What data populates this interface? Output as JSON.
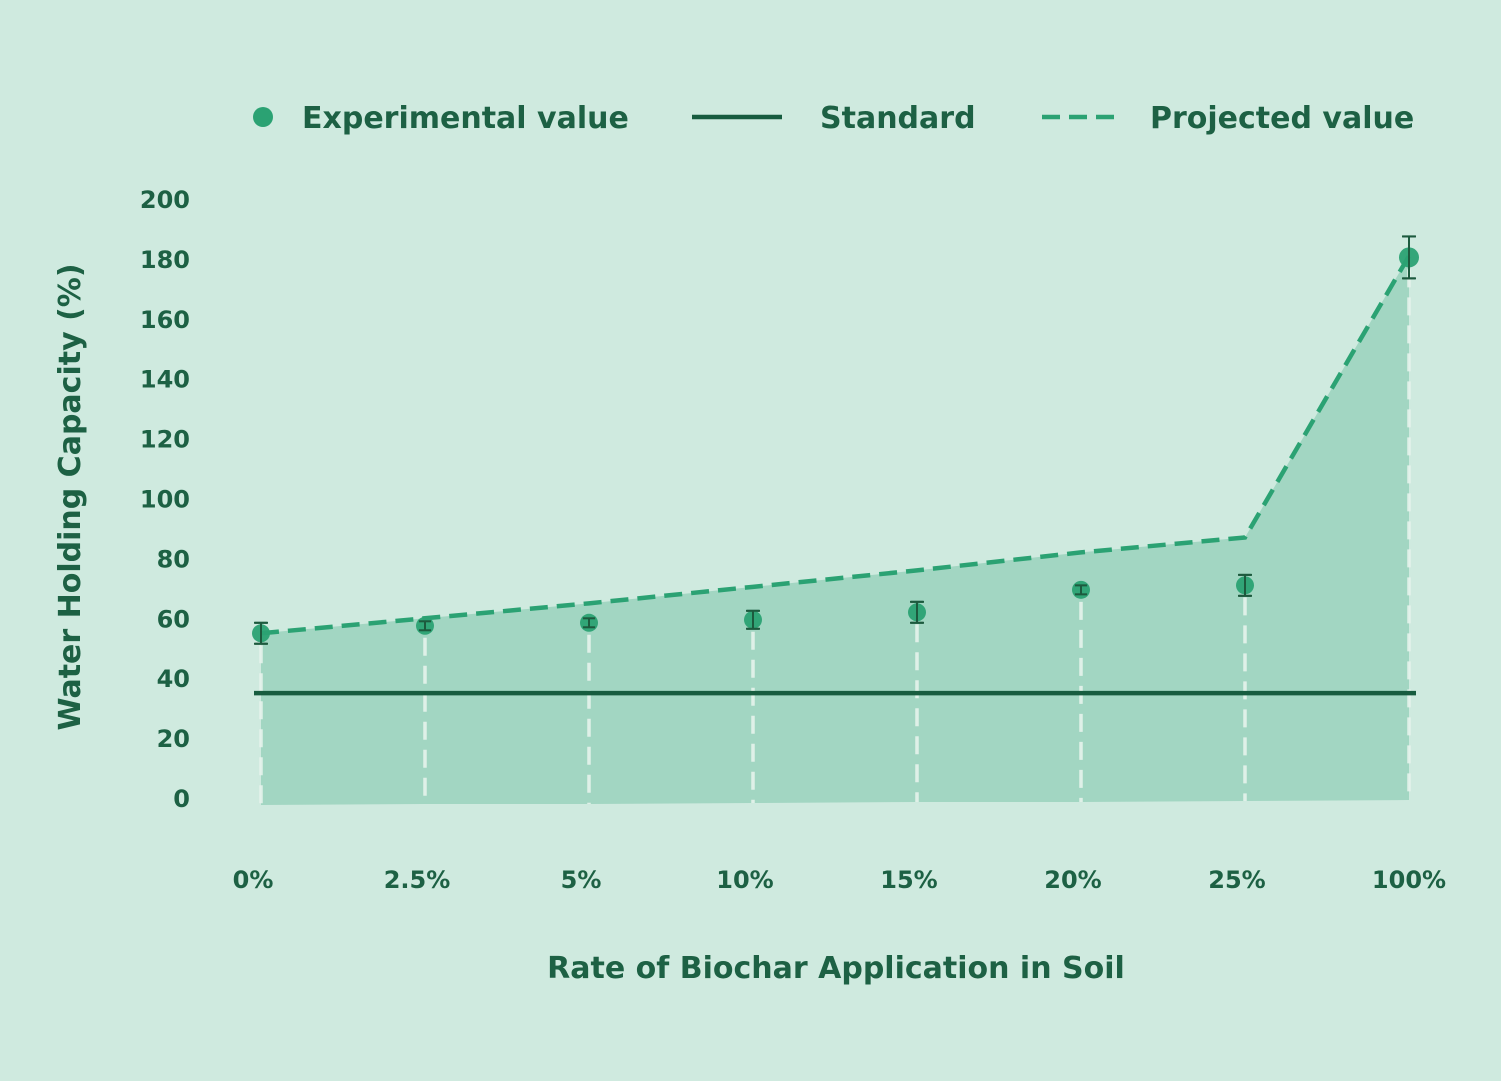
{
  "chart_data": {
    "type": "line",
    "title": "",
    "xlabel": "Rate of Biochar Application in Soil",
    "ylabel": "Water Holding Capacity (%)",
    "ylim": [
      0,
      200
    ],
    "yticks": [
      0,
      20,
      40,
      60,
      80,
      100,
      120,
      140,
      160,
      180,
      200
    ],
    "categories": [
      "0%",
      "2.5%",
      "5%",
      "10%",
      "15%",
      "20%",
      "25%",
      "100%"
    ],
    "legend_position": "top",
    "legend": {
      "experimental": "Experimental value",
      "standard": "Standard",
      "projected": "Projected value"
    },
    "series": [
      {
        "name": "Experimental value",
        "values": [
          55,
          57.5,
          58.5,
          59.5,
          62,
          69.5,
          71,
          180.5
        ],
        "errors": [
          3.5,
          1.5,
          1.5,
          3,
          3.5,
          1.5,
          3.5,
          7
        ]
      },
      {
        "name": "Projected value",
        "values": [
          55,
          60,
          65,
          70.5,
          76,
          82,
          87,
          181
        ]
      },
      {
        "name": "Standard",
        "values": [
          35,
          35,
          35,
          35,
          35,
          35,
          35,
          35
        ]
      }
    ],
    "colors": {
      "background": "#cfeadf",
      "area": "#a2d6c2",
      "experimental": "#2ba273",
      "standard": "#175c3f",
      "projected": "#2ba273",
      "text": "#1d6144",
      "error_bar": "#1d5a3e",
      "grid_dash": "#e6f3ec"
    }
  }
}
